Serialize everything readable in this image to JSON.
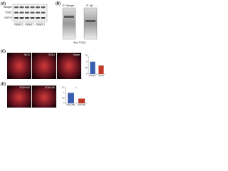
{
  "panels": [
    {
      "label": "(A)",
      "rows": [
        "Nidogen",
        "TGFβ1",
        "GAPDH"
      ],
      "groups": [
        "Patient 1",
        "Patient 2",
        "Patient 3"
      ]
    },
    {
      "label": "(B)",
      "lanes": [
        "IP: Nidogen",
        "IP: IgG"
      ],
      "blot": "Blot: TGFβ1"
    },
    {
      "label": "(C)",
      "images": [
        "NIDG",
        "TGFβ1",
        "Merge"
      ]
    },
    {
      "label": "(D)",
      "images": [
        "ECM+NID",
        "ECM-NID"
      ]
    }
  ],
  "chart_data": [
    {
      "type": "bar",
      "categories": [
        "Nidogen",
        "TGFβ1"
      ],
      "values": [
        1.0,
        0.7
      ],
      "colors": [
        "#3a5fb0",
        "#c0392b"
      ],
      "ylim": [
        0,
        1.5
      ],
      "yticks": [
        0,
        0.5,
        1,
        1.5
      ]
    },
    {
      "type": "bar",
      "categories": [
        "ECM+NID",
        "ECM-NID"
      ],
      "values": [
        1.0,
        0.45
      ],
      "colors": [
        "#3a5fb0",
        "#c0392b"
      ],
      "ylim": [
        0,
        1.5
      ],
      "yticks": [
        0,
        0.5,
        1,
        1.5
      ],
      "annotation": "**"
    }
  ]
}
